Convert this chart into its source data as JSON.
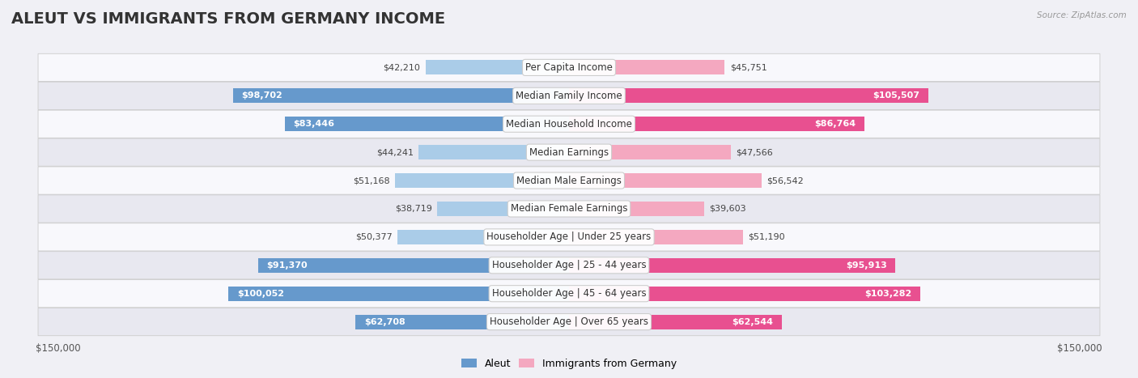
{
  "title": "ALEUT VS IMMIGRANTS FROM GERMANY INCOME",
  "source": "Source: ZipAtlas.com",
  "categories": [
    "Per Capita Income",
    "Median Family Income",
    "Median Household Income",
    "Median Earnings",
    "Median Male Earnings",
    "Median Female Earnings",
    "Householder Age | Under 25 years",
    "Householder Age | 25 - 44 years",
    "Householder Age | 45 - 64 years",
    "Householder Age | Over 65 years"
  ],
  "aleut_values": [
    42210,
    98702,
    83446,
    44241,
    51168,
    38719,
    50377,
    91370,
    100052,
    62708
  ],
  "germany_values": [
    45751,
    105507,
    86764,
    47566,
    56542,
    39603,
    51190,
    95913,
    103282,
    62544
  ],
  "aleut_color_small": "#aacce8",
  "aleut_color_large": "#6699cc",
  "germany_color_small": "#f4a8c0",
  "germany_color_large": "#e85090",
  "aleut_label": "Aleut",
  "germany_label": "Immigrants from Germany",
  "max_value": 150000,
  "bar_height": 0.52,
  "background_color": "#f0f0f5",
  "row_bg_light": "#f8f8fc",
  "row_bg_dark": "#e8e8f0",
  "title_fontsize": 14,
  "label_fontsize": 8.5,
  "value_fontsize": 8,
  "legend_fontsize": 9,
  "inside_threshold": 60000
}
